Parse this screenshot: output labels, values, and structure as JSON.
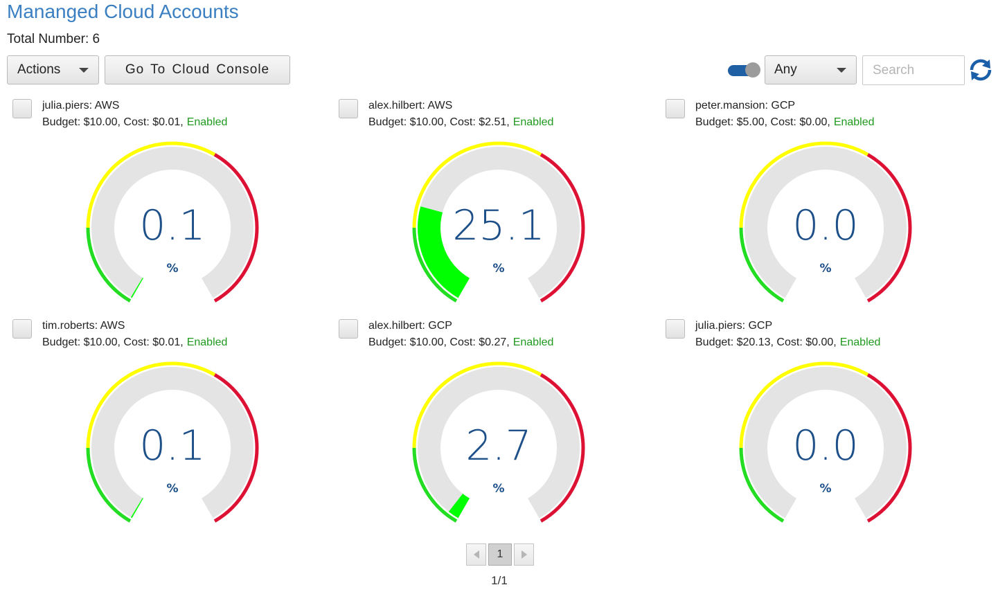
{
  "header": {
    "title": "Mananged Cloud Accounts",
    "total_label": "Total Number: 6"
  },
  "toolbar": {
    "actions_label": "Actions",
    "console_label": "Go To Cloud Console",
    "toggle_on": true,
    "filter_value": "Any",
    "search_placeholder": "Search",
    "search_value": ""
  },
  "colors": {
    "title": "#3a7fc1",
    "value_text": "#1d4f88",
    "enabled_text": "#1f9a1f",
    "gauge_track": "#e4e4e4",
    "gauge_fill": "#00ff00",
    "zone_green": "#22dd22",
    "zone_yellow": "#ffff00",
    "zone_red": "#dd1133"
  },
  "cards": [
    {
      "account": "julia.piers: AWS",
      "budget_text": "Budget: $10.00, Cost: $0.01,",
      "status": "Enabled",
      "percent": 0.1,
      "value_text": "0.1",
      "unit": "%"
    },
    {
      "account": "alex.hilbert: AWS",
      "budget_text": "Budget: $10.00, Cost: $2.51,",
      "status": "Enabled",
      "percent": 25.1,
      "value_text": "25.1",
      "unit": "%"
    },
    {
      "account": "peter.mansion: GCP",
      "budget_text": "Budget: $5.00, Cost: $0.00,",
      "status": "Enabled",
      "percent": 0.0,
      "value_text": "0.0",
      "unit": "%"
    },
    {
      "account": "tim.roberts: AWS",
      "budget_text": "Budget: $10.00, Cost: $0.01,",
      "status": "Enabled",
      "percent": 0.1,
      "value_text": "0.1",
      "unit": "%"
    },
    {
      "account": "alex.hilbert: GCP",
      "budget_text": "Budget: $10.00, Cost: $0.27,",
      "status": "Enabled",
      "percent": 2.7,
      "value_text": "2.7",
      "unit": "%"
    },
    {
      "account": "julia.piers: GCP",
      "budget_text": "Budget: $20.13, Cost: $0.00,",
      "status": "Enabled",
      "percent": 0.0,
      "value_text": "0.0",
      "unit": "%"
    }
  ],
  "pagination": {
    "current_page": "1",
    "info": "1/1"
  }
}
